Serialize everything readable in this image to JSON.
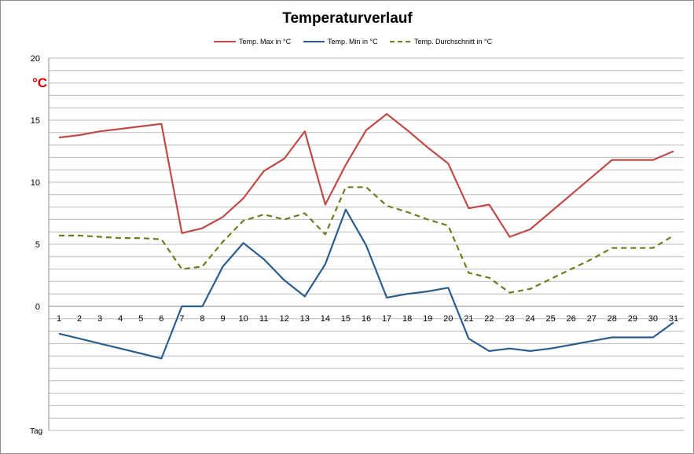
{
  "chart_data": {
    "type": "line",
    "title": "Temperaturverlauf",
    "ylabel": "°C",
    "xlabel": "Tag",
    "ylim": [
      -10,
      20
    ],
    "yticks": [
      20,
      15,
      10,
      5,
      0
    ],
    "x": [
      1,
      2,
      3,
      4,
      5,
      6,
      7,
      8,
      9,
      10,
      11,
      12,
      13,
      14,
      15,
      16,
      17,
      18,
      19,
      20,
      21,
      22,
      23,
      24,
      25,
      26,
      27,
      28,
      29,
      30,
      31
    ],
    "legend": "top",
    "grid": true,
    "series": [
      {
        "name": "Temp. Max in °C",
        "color": "#be4b48",
        "style": "solid",
        "values": [
          13.6,
          13.8,
          14.1,
          14.3,
          14.5,
          14.7,
          5.9,
          6.3,
          7.2,
          8.7,
          10.9,
          11.9,
          14.1,
          8.2,
          11.4,
          14.2,
          15.5,
          14.2,
          12.8,
          11.5,
          7.9,
          8.2,
          5.6,
          6.2,
          7.6,
          9.0,
          10.4,
          11.8,
          11.8,
          11.8,
          12.5
        ]
      },
      {
        "name": "Temp. Min in °C",
        "color": "#2c5d8f",
        "style": "solid",
        "values": [
          -2.2,
          -2.6,
          -3.0,
          -3.4,
          -3.8,
          -4.2,
          0,
          0,
          3.2,
          5.1,
          3.8,
          2.1,
          0.8,
          3.4,
          7.8,
          4.9,
          0.7,
          1.0,
          1.2,
          1.5,
          -2.6,
          -3.6,
          -3.4,
          -3.6,
          -3.4,
          -3.1,
          -2.8,
          -2.5,
          -2.5,
          -2.5,
          -1.3
        ]
      },
      {
        "name": "Temp. Durchschnitt in °C",
        "color": "#6b7d1e",
        "style": "dashed",
        "values": [
          5.7,
          5.7,
          5.6,
          5.5,
          5.5,
          5.4,
          3.0,
          3.2,
          5.2,
          6.9,
          7.4,
          7.0,
          7.5,
          5.8,
          9.6,
          9.6,
          8.1,
          7.6,
          7.0,
          6.5,
          2.7,
          2.3,
          1.1,
          1.4,
          2.2,
          3.0,
          3.8,
          4.7,
          4.7,
          4.7,
          5.7
        ]
      }
    ]
  }
}
